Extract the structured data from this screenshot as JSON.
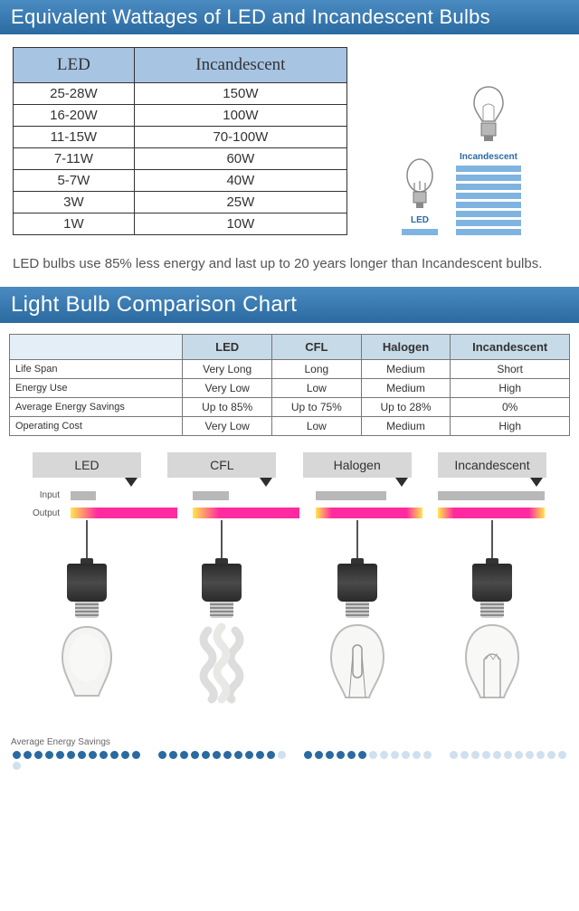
{
  "header1": "Equivalent Wattages of LED and Incandescent Bulbs",
  "header2": "Light Bulb Comparison Chart",
  "wattage": {
    "columns": [
      "LED",
      "Incandescent"
    ],
    "rows": [
      [
        "25-28W",
        "150W"
      ],
      [
        "16-20W",
        "100W"
      ],
      [
        "11-15W",
        "70-100W"
      ],
      [
        "7-11W",
        "60W"
      ],
      [
        "5-7W",
        "40W"
      ],
      [
        "3W",
        "25W"
      ],
      [
        "1W",
        "10W"
      ]
    ]
  },
  "mini": {
    "led_label": "LED",
    "inc_label": "Incandescent",
    "led_bars": 1,
    "inc_bars": 8,
    "bar_color": "#7fb3e0",
    "led_bar_w": 40,
    "inc_bar_w": 72
  },
  "caption": "LED bulbs use 85% less energy and last up to 20 years longer than Incandescent bulbs.",
  "comp": {
    "columns": [
      "",
      "LED",
      "CFL",
      "Halogen",
      "Incandescent"
    ],
    "rows": [
      [
        "Life Span",
        "Very Long",
        "Long",
        "Medium",
        "Short"
      ],
      [
        "Energy Use",
        "Very Low",
        "Low",
        "Medium",
        "High"
      ],
      [
        "Average Energy Savings",
        "Up to 85%",
        "Up to 75%",
        "Up to 28%",
        "0%"
      ],
      [
        "Operating Cost",
        "Very Low",
        "Low",
        "Medium",
        "High"
      ]
    ]
  },
  "io": {
    "tabs": [
      "LED",
      "CFL",
      "Halogen",
      "Incandescent"
    ],
    "input_label": "Input",
    "output_label": "Output",
    "input_widths": [
      28,
      40,
      78,
      118
    ],
    "output_widths": [
      118,
      118,
      118,
      118
    ]
  },
  "dots": {
    "label": "Average Energy Savings",
    "filled_color": "#2a6aa0",
    "empty_color": "#cfe0ef",
    "groups": [
      {
        "filled": 12,
        "total": 12
      },
      {
        "filled": 11,
        "total": 12
      },
      {
        "filled": 6,
        "total": 12
      },
      {
        "filled": 0,
        "total": 12
      }
    ]
  },
  "colors": {
    "header_grad_top": "#4a8bc2",
    "header_grad_bot": "#2a6aa0",
    "th_bg": "#a7c4e2",
    "comp_th_bg": "#c7dae8"
  }
}
